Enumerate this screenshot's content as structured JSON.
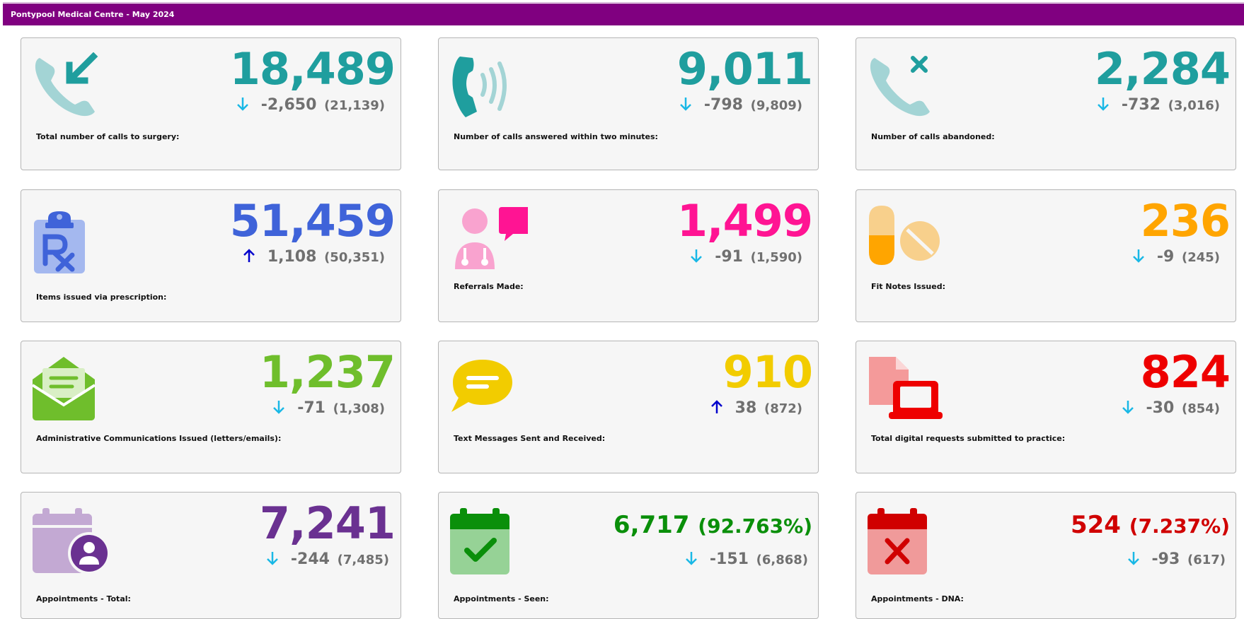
{
  "header": {
    "title": "Pontypool Medical Centre - May 2024"
  },
  "cards": [
    {
      "label": "Total number of calls to surgery:",
      "value": "18,489",
      "change": "-2,650",
      "previous": "(21,139)",
      "trend": "down",
      "color": "#1f9e9e",
      "icon": "incoming-call-icon"
    },
    {
      "label": "Number of calls answered within two minutes:",
      "value": "9,011",
      "change": "-798",
      "previous": "(9,809)",
      "trend": "down",
      "color": "#1f9e9e",
      "icon": "phone-ringing-icon"
    },
    {
      "label": "Number of calls abandoned:",
      "value": "2,284",
      "change": "-732",
      "previous": "(3,016)",
      "trend": "down",
      "color": "#1f9e9e",
      "icon": "missed-call-icon"
    },
    {
      "label": "Items issued via prescription:",
      "value": "51,459",
      "change": "1,108",
      "previous": "(50,351)",
      "trend": "up",
      "color": "#3f63d9",
      "icon": "prescription-clipboard-icon"
    },
    {
      "label": "Referrals Made:",
      "value": "1,499",
      "change": "-91",
      "previous": "(1,590)",
      "trend": "down",
      "color": "#ff1493",
      "icon": "doctor-chat-icon"
    },
    {
      "label": "Fit Notes Issued:",
      "value": "236",
      "change": "-9",
      "previous": "(245)",
      "trend": "down",
      "color": "#ffa500",
      "icon": "pills-icon"
    },
    {
      "label": "Administrative Communications Issued (letters/emails):",
      "value": "1,237",
      "change": "-71",
      "previous": "(1,308)",
      "trend": "down",
      "color": "#6fbe2c",
      "icon": "open-envelope-icon"
    },
    {
      "label": "Text Messages Sent and Received:",
      "value": "910",
      "change": "38",
      "previous": "(872)",
      "trend": "up",
      "color": "#f2cc00",
      "icon": "speech-bubble-icon"
    },
    {
      "label": "Total digital requests submitted to practice:",
      "value": "824",
      "change": "-30",
      "previous": "(854)",
      "trend": "down",
      "color": "#ee0000",
      "icon": "laptop-document-icon"
    },
    {
      "label": "Appointments - Total:",
      "value": "7,241",
      "change": "-244",
      "previous": "(7,485)",
      "trend": "down",
      "color": "#6a3191",
      "icon": "calendar-user-icon"
    },
    {
      "label": "Appointments - Seen:",
      "value": "6,717",
      "percent": "(92.763%)",
      "change": "-151",
      "previous": "(6,868)",
      "trend": "down",
      "color": "#0a8f0a",
      "icon": "calendar-check-icon"
    },
    {
      "label": "Appointments - DNA:",
      "value": "524",
      "percent": "(7.237%)",
      "change": "-93",
      "previous": "(617)",
      "trend": "down",
      "color": "#d00000",
      "icon": "calendar-cross-icon"
    }
  ],
  "colors": {
    "trend_down": "#19b8e6",
    "trend_up": "#0000cc",
    "header": "#800080",
    "delta_text": "#707070"
  }
}
